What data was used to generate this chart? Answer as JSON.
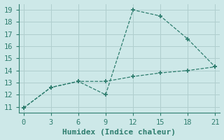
{
  "line1_x": [
    0,
    3,
    6,
    9,
    12,
    15,
    18,
    21
  ],
  "line1_y": [
    10.9,
    12.6,
    13.1,
    12.0,
    19.0,
    18.5,
    16.6,
    14.3
  ],
  "line2_x": [
    0,
    3,
    6,
    9,
    12,
    15,
    18,
    21
  ],
  "line2_y": [
    10.9,
    12.6,
    13.1,
    13.1,
    13.5,
    13.8,
    14.0,
    14.3
  ],
  "line_color": "#2e7d6e",
  "bg_color": "#cde8e8",
  "grid_color": "#b0cece",
  "axis_color": "#2e7d6e",
  "xlabel": "Humidex (Indice chaleur)",
  "xlim": [
    -0.5,
    21.5
  ],
  "ylim": [
    10.5,
    19.5
  ],
  "xticks": [
    0,
    3,
    6,
    9,
    12,
    15,
    18,
    21
  ],
  "yticks": [
    11,
    12,
    13,
    14,
    15,
    16,
    17,
    18,
    19
  ],
  "xlabel_fontsize": 8,
  "tick_fontsize": 7.5
}
